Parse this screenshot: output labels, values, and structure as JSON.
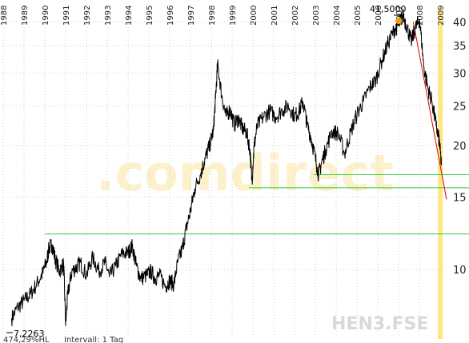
{
  "chart_data": {
    "type": "line",
    "ticker": "HEN3.FSE",
    "watermark": ".comdirect",
    "footer": "474,29%HL",
    "interval": "Intervall: 1 Tag",
    "high_label": "41,5000",
    "low_label": "7,2263",
    "y_scale": "log",
    "ylim": [
      6.9,
      44
    ],
    "y_ticks": [
      10,
      15,
      20,
      25,
      30,
      35,
      40
    ],
    "y_tick_labels": [
      "10",
      "15",
      "20",
      "25",
      "30",
      "35",
      "40"
    ],
    "x_tick_labels": [
      "1988",
      "1989",
      "1990",
      "1991",
      "1992",
      "1993",
      "1994",
      "1995",
      "1996",
      "1997",
      "1998",
      "1999",
      "2000",
      "2001",
      "2002",
      "2003",
      "2004",
      "2005",
      "2006",
      "2007",
      "2008",
      "2009"
    ],
    "xlim": [
      1988.0,
      2009.3
    ],
    "x": [
      1988.4,
      1988.7,
      1989.0,
      1989.3,
      1989.6,
      1989.9,
      1990.1,
      1990.2,
      1990.35,
      1990.5,
      1990.7,
      1990.9,
      1991.0,
      1991.1,
      1991.3,
      1991.5,
      1991.7,
      1992.0,
      1992.3,
      1992.6,
      1992.9,
      1993.1,
      1993.4,
      1993.7,
      1994.0,
      1994.2,
      1994.4,
      1994.6,
      1994.9,
      1995.1,
      1995.3,
      1995.5,
      1995.8,
      1996.0,
      1996.2,
      1996.4,
      1996.6,
      1996.8,
      1997.0,
      1997.2,
      1997.5,
      1997.7,
      1997.9,
      1998.1,
      1998.2,
      1998.3,
      1998.5,
      1998.7,
      1998.9,
      1999.1,
      1999.3,
      1999.5,
      1999.7,
      1999.85,
      1999.95,
      2000.05,
      2000.2,
      2000.5,
      2000.8,
      2001.1,
      2001.4,
      2001.7,
      2002.0,
      2002.2,
      2002.4,
      2002.6,
      2002.8,
      2003.0,
      2003.15,
      2003.3,
      2003.5,
      2003.8,
      2004.1,
      2004.4,
      2004.7,
      2005.0,
      2005.3,
      2005.6,
      2005.9,
      2006.2,
      2006.5,
      2006.8,
      2007.0,
      2007.2,
      2007.4,
      2007.6,
      2007.8,
      2008.0,
      2008.2,
      2008.4,
      2008.6,
      2008.8,
      2008.95,
      2009.05
    ],
    "y": [
      7.6,
      8.1,
      8.4,
      8.7,
      9.2,
      9.8,
      10.5,
      11.3,
      11.5,
      10.6,
      9.9,
      10.3,
      7.3,
      8.7,
      9.9,
      10.1,
      10.4,
      9.7,
      10.7,
      9.9,
      10.4,
      9.6,
      10.2,
      10.9,
      11.0,
      11.4,
      10.2,
      9.5,
      9.7,
      9.9,
      9.5,
      9.7,
      9.1,
      9.4,
      9.2,
      10.5,
      11.2,
      12.6,
      13.9,
      15.7,
      17.2,
      18.6,
      19.9,
      21.8,
      26.0,
      31.5,
      26.4,
      23.6,
      24.5,
      22.5,
      23.3,
      22.0,
      21.5,
      19.6,
      16.4,
      19.8,
      22.3,
      23.5,
      24.3,
      23.5,
      24.4,
      25.0,
      23.6,
      24.2,
      25.6,
      22.5,
      20.8,
      18.6,
      17.0,
      18.2,
      19.6,
      21.7,
      21.4,
      19.1,
      21.6,
      23.9,
      25.6,
      27.7,
      28.9,
      32.3,
      35.6,
      38.4,
      39.2,
      41.5,
      38.9,
      35.8,
      38.6,
      40.5,
      31.2,
      27.6,
      25.6,
      22.3,
      20.5,
      17.9
    ],
    "support_lines": [
      {
        "value": 12.2,
        "x_start": 1990.0
      },
      {
        "value": 15.8,
        "x_start": 1999.8
      },
      {
        "value": 17.0,
        "x_start": 2002.9
      }
    ],
    "trendline": {
      "x": [
        2007.7,
        2009.3
      ],
      "y": [
        40.0,
        14.8
      ]
    },
    "vertical_marker_x": 2009.0,
    "colors": {
      "price": "#000000",
      "support": "#33cc33",
      "trend": "#dd0000",
      "grid": "#cccccc",
      "marker": "#ffe680",
      "watermark": "#fdf1cc",
      "ticker": "#d9d9d9",
      "high_dot": "#f0a000"
    }
  }
}
